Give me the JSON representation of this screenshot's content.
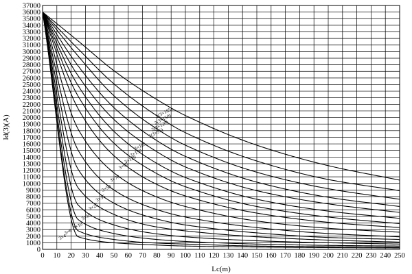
{
  "chart_data": {
    "type": "line",
    "xlabel": "Lc(m)",
    "ylabel": "Id(3)(A)",
    "xlim": [
      0,
      250
    ],
    "ylim": [
      0,
      37000
    ],
    "xticks": [
      "0",
      "10",
      "20",
      "30",
      "40",
      "50",
      "60",
      "70",
      "80",
      "90",
      "100",
      "110",
      "120",
      "130",
      "140",
      "150",
      "160",
      "170",
      "180",
      "190",
      "200",
      "210",
      "220",
      "230",
      "240",
      "250"
    ],
    "yticks": [
      "0",
      "1000",
      "2000",
      "3000",
      "4000",
      "5000",
      "6000",
      "7000",
      "8000",
      "9000",
      "10000",
      "11000",
      "12000",
      "13000",
      "14000",
      "15000",
      "16000",
      "17000",
      "18000",
      "19000",
      "20000",
      "21000",
      "22000",
      "23000",
      "24000",
      "25000",
      "26000",
      "27000",
      "28000",
      "29000",
      "30000",
      "31000",
      "32000",
      "33000",
      "34000",
      "35000",
      "36000",
      "37000"
    ],
    "grid": true,
    "series": [
      {
        "name": "2(3×185)",
        "x": [
          0,
          25,
          50,
          75,
          100,
          150,
          200,
          250
        ],
        "y": [
          36000,
          31600,
          27100,
          23400,
          20300,
          15800,
          12700,
          10500
        ],
        "label_at": [
          80,
          19900
        ]
      },
      {
        "name": "2(3×150)",
        "x": [
          0,
          25,
          50,
          75,
          100,
          150,
          200,
          250
        ],
        "y": [
          36000,
          30400,
          25100,
          21000,
          17700,
          13400,
          10600,
          8900
        ],
        "label_at": [
          79,
          18900
        ]
      },
      {
        "name": "2(3×120)",
        "x": [
          0,
          25,
          50,
          75,
          100,
          150,
          200,
          250
        ],
        "y": [
          36000,
          29300,
          23300,
          19000,
          15800,
          11700,
          9200,
          7600
        ],
        "label_at": [
          77,
          17900
        ]
      },
      {
        "name": "2(3×95)",
        "x": [
          0,
          25,
          50,
          75,
          100,
          150,
          200,
          250
        ],
        "y": [
          36000,
          27800,
          21500,
          17200,
          14100,
          10200,
          7900,
          6500
        ],
        "label_at": [
          75,
          16900
        ]
      },
      {
        "name": "3×185",
        "x": [
          0,
          25,
          50,
          75,
          100,
          150,
          200,
          250
        ],
        "y": [
          36000,
          26300,
          19700,
          15500,
          12500,
          8900,
          6900,
          5600
        ],
        "label_at": [
          65,
          15000
        ]
      },
      {
        "name": "3×150",
        "x": [
          0,
          25,
          50,
          75,
          100,
          150,
          200,
          250
        ],
        "y": [
          36000,
          24800,
          17900,
          13700,
          10900,
          7600,
          5800,
          4700
        ],
        "label_at": [
          62,
          14000
        ]
      },
      {
        "name": "3×120",
        "x": [
          0,
          25,
          50,
          75,
          100,
          150,
          200,
          250
        ],
        "y": [
          36000,
          23200,
          16100,
          12100,
          9500,
          6500,
          4900,
          3900
        ],
        "label_at": [
          58,
          13000
        ]
      },
      {
        "name": "3×95",
        "x": [
          0,
          25,
          50,
          75,
          100,
          150,
          200,
          250
        ],
        "y": [
          36000,
          21300,
          14200,
          10400,
          8100,
          5500,
          4100,
          3300
        ],
        "label_at": [
          54,
          12100
        ]
      },
      {
        "name": "3×70",
        "x": [
          0,
          25,
          50,
          75,
          100,
          150,
          200,
          250
        ],
        "y": [
          36000,
          18200,
          11600,
          8400,
          6500,
          4300,
          3200,
          2600
        ],
        "label_at": [
          48,
          10200
        ]
      },
      {
        "name": "3×50",
        "x": [
          0,
          25,
          50,
          75,
          100,
          150,
          200,
          250
        ],
        "y": [
          36000,
          15000,
          9000,
          6400,
          4900,
          3300,
          2400,
          1900
        ],
        "label_at": [
          42,
          8700
        ]
      },
      {
        "name": "3×35",
        "x": [
          0,
          25,
          50,
          75,
          100,
          150,
          200,
          250
        ],
        "y": [
          36000,
          12100,
          7000,
          4900,
          3700,
          2500,
          1800,
          1500
        ],
        "label_at": [
          38,
          7200
        ]
      },
      {
        "name": "3×25",
        "x": [
          0,
          25,
          50,
          75,
          100,
          150,
          200,
          250
        ],
        "y": [
          36000,
          9300,
          5300,
          3600,
          2800,
          1900,
          1400,
          1100
        ],
        "label_at": [
          33,
          5900
        ]
      },
      {
        "name": "3×16",
        "x": [
          0,
          25,
          50,
          75,
          100,
          150,
          200,
          250
        ],
        "y": [
          36000,
          6700,
          3700,
          2500,
          1900,
          1300,
          1000,
          800
        ],
        "label_at": [
          28,
          4400
        ]
      },
      {
        "name": "3×10",
        "x": [
          0,
          25,
          50,
          75,
          100,
          150,
          200,
          250
        ],
        "y": [
          36000,
          4500,
          2400,
          1600,
          1200,
          800,
          600,
          500
        ],
        "label_at": [
          22,
          3000
        ]
      },
      {
        "name": "3×6",
        "x": [
          0,
          25,
          50,
          75,
          100,
          150,
          200,
          250
        ],
        "y": [
          36000,
          2800,
          1500,
          1000,
          800,
          500,
          400,
          300
        ],
        "label_at": [
          16,
          2200
        ]
      },
      {
        "name": "3×4",
        "x": [
          0,
          25,
          50,
          75,
          100,
          150,
          200,
          250
        ],
        "y": [
          36000,
          1900,
          1000,
          700,
          500,
          350,
          260,
          200
        ],
        "label_at": [
          12,
          1400
        ]
      }
    ]
  }
}
